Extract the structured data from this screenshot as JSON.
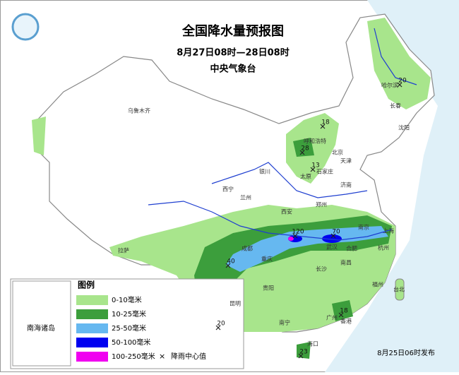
{
  "header": {
    "title": "全国降水量预报图",
    "period": "8月27日08时—28日08时",
    "agency": "中央气象台"
  },
  "legend": {
    "title": "图例",
    "items": [
      {
        "label": "0-10毫米",
        "color": "#a8e58c"
      },
      {
        "label": "10-25毫米",
        "color": "#3c9e3c"
      },
      {
        "label": "25-50毫米",
        "color": "#66b8f0"
      },
      {
        "label": "50-100毫米",
        "color": "#0000f0"
      },
      {
        "label": "100-250毫米",
        "color": "#f000f0"
      }
    ],
    "center_marker": "×",
    "center_label": "降雨中心值"
  },
  "cities": [
    "乌鲁木齐",
    "哈尔滨",
    "长春",
    "沈阳",
    "呼和浩特",
    "北京",
    "天津",
    "太原",
    "石家庄",
    "银川",
    "西宁",
    "兰州",
    "济南",
    "郑州",
    "西安",
    "成都",
    "南京",
    "上海",
    "合肥",
    "武汉",
    "杭州",
    "拉萨",
    "重庆",
    "长沙",
    "南昌",
    "福州",
    "台北",
    "贵阳",
    "昆明",
    "南宁",
    "广州",
    "香港",
    "海口"
  ],
  "rain_centers": [
    "18",
    "20",
    "28",
    "13",
    "120",
    "70",
    "40",
    "18",
    "20",
    "23"
  ],
  "inset_label": "南海诸岛",
  "issued": "8月25日06时发布"
}
